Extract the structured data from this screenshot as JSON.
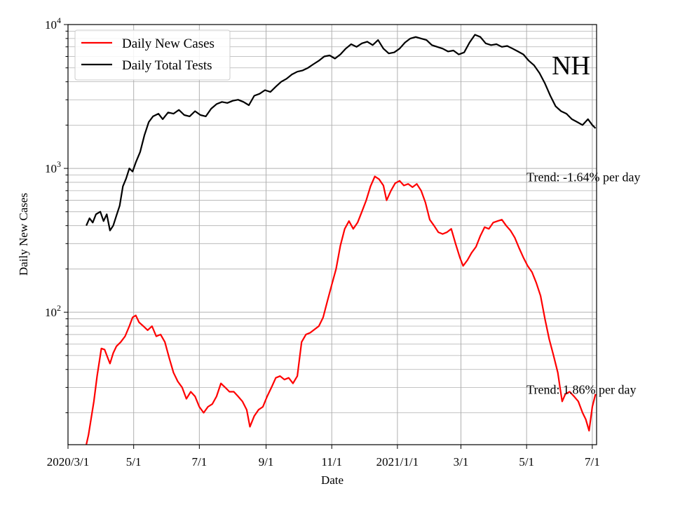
{
  "colors": {
    "cases": "#ff0000",
    "tests": "#000000",
    "grid": "#b0b0b0"
  },
  "chart_data": {
    "type": "line",
    "title": "",
    "xlabel": "Date",
    "ylabel": "Daily New Cases",
    "yscale": "log",
    "ylim": [
      12,
      10000
    ],
    "xlim": [
      "2020-03-01",
      "2021-07-05"
    ],
    "x_ticks": [
      {
        "date": "2020-03-01",
        "label": "2020/3/1"
      },
      {
        "date": "2020-05-01",
        "label": "5/1"
      },
      {
        "date": "2020-07-01",
        "label": "7/1"
      },
      {
        "date": "2020-09-01",
        "label": "9/1"
      },
      {
        "date": "2020-11-01",
        "label": "11/1"
      },
      {
        "date": "2021-01-01",
        "label": "2021/1/1"
      },
      {
        "date": "2021-03-01",
        "label": "3/1"
      },
      {
        "date": "2021-05-01",
        "label": "5/1"
      },
      {
        "date": "2021-07-01",
        "label": "7/1"
      }
    ],
    "y_ticks": [
      {
        "value": 100,
        "base": "10",
        "exp": "2"
      },
      {
        "value": 1000,
        "base": "10",
        "exp": "3"
      },
      {
        "value": 10000,
        "base": "10",
        "exp": "4"
      }
    ],
    "grid": true,
    "legend_position": "top-left",
    "state_label": "NH",
    "annotations": [
      {
        "text": "Trend: -1.64% per day",
        "date": "2021-05-01",
        "value": 870
      },
      {
        "text": "Trend: 1.86% per day",
        "date": "2021-05-01",
        "value": 29
      }
    ],
    "series": [
      {
        "name": "Daily New Cases",
        "color": "#ff0000",
        "points": [
          [
            "2020-03-18",
            12
          ],
          [
            "2020-03-20",
            14
          ],
          [
            "2020-03-25",
            24
          ],
          [
            "2020-03-28",
            36
          ],
          [
            "2020-04-01",
            56
          ],
          [
            "2020-04-04",
            55
          ],
          [
            "2020-04-07",
            48
          ],
          [
            "2020-04-09",
            44
          ],
          [
            "2020-04-12",
            52
          ],
          [
            "2020-04-15",
            58
          ],
          [
            "2020-04-19",
            62
          ],
          [
            "2020-04-23",
            68
          ],
          [
            "2020-04-27",
            80
          ],
          [
            "2020-04-30",
            92
          ],
          [
            "2020-05-03",
            95
          ],
          [
            "2020-05-06",
            85
          ],
          [
            "2020-05-10",
            80
          ],
          [
            "2020-05-14",
            75
          ],
          [
            "2020-05-18",
            80
          ],
          [
            "2020-05-22",
            68
          ],
          [
            "2020-05-26",
            70
          ],
          [
            "2020-05-30",
            62
          ],
          [
            "2020-06-03",
            48
          ],
          [
            "2020-06-07",
            38
          ],
          [
            "2020-06-11",
            33
          ],
          [
            "2020-06-15",
            30
          ],
          [
            "2020-06-19",
            25
          ],
          [
            "2020-06-23",
            28
          ],
          [
            "2020-06-27",
            26
          ],
          [
            "2020-07-01",
            22
          ],
          [
            "2020-07-05",
            20
          ],
          [
            "2020-07-09",
            22
          ],
          [
            "2020-07-13",
            23
          ],
          [
            "2020-07-17",
            26
          ],
          [
            "2020-07-21",
            32
          ],
          [
            "2020-07-25",
            30
          ],
          [
            "2020-07-29",
            28
          ],
          [
            "2020-08-02",
            28
          ],
          [
            "2020-08-06",
            26
          ],
          [
            "2020-08-10",
            24
          ],
          [
            "2020-08-14",
            21
          ],
          [
            "2020-08-17",
            16
          ],
          [
            "2020-08-21",
            19
          ],
          [
            "2020-08-25",
            21
          ],
          [
            "2020-08-29",
            22
          ],
          [
            "2020-09-02",
            26
          ],
          [
            "2020-09-06",
            30
          ],
          [
            "2020-09-10",
            35
          ],
          [
            "2020-09-14",
            36
          ],
          [
            "2020-09-18",
            34
          ],
          [
            "2020-09-22",
            35
          ],
          [
            "2020-09-26",
            32
          ],
          [
            "2020-09-30",
            36
          ],
          [
            "2020-10-04",
            62
          ],
          [
            "2020-10-08",
            70
          ],
          [
            "2020-10-12",
            72
          ],
          [
            "2020-10-16",
            76
          ],
          [
            "2020-10-20",
            80
          ],
          [
            "2020-10-24",
            92
          ],
          [
            "2020-10-28",
            120
          ],
          [
            "2020-11-01",
            155
          ],
          [
            "2020-11-05",
            200
          ],
          [
            "2020-11-09",
            290
          ],
          [
            "2020-11-13",
            380
          ],
          [
            "2020-11-17",
            430
          ],
          [
            "2020-11-21",
            380
          ],
          [
            "2020-11-25",
            420
          ],
          [
            "2020-11-29",
            500
          ],
          [
            "2020-12-03",
            600
          ],
          [
            "2020-12-07",
            750
          ],
          [
            "2020-12-11",
            880
          ],
          [
            "2020-12-15",
            840
          ],
          [
            "2020-12-19",
            760
          ],
          [
            "2020-12-22",
            600
          ],
          [
            "2020-12-26",
            700
          ],
          [
            "2020-12-30",
            790
          ],
          [
            "2021-01-03",
            820
          ],
          [
            "2021-01-07",
            760
          ],
          [
            "2021-01-11",
            780
          ],
          [
            "2021-01-15",
            740
          ],
          [
            "2021-01-19",
            780
          ],
          [
            "2021-01-23",
            700
          ],
          [
            "2021-01-27",
            580
          ],
          [
            "2021-01-31",
            440
          ],
          [
            "2021-02-04",
            400
          ],
          [
            "2021-02-08",
            360
          ],
          [
            "2021-02-12",
            350
          ],
          [
            "2021-02-16",
            360
          ],
          [
            "2021-02-20",
            380
          ],
          [
            "2021-02-24",
            300
          ],
          [
            "2021-02-28",
            240
          ],
          [
            "2021-03-03",
            210
          ],
          [
            "2021-03-07",
            230
          ],
          [
            "2021-03-11",
            260
          ],
          [
            "2021-03-15",
            285
          ],
          [
            "2021-03-19",
            340
          ],
          [
            "2021-03-23",
            390
          ],
          [
            "2021-03-27",
            380
          ],
          [
            "2021-03-31",
            420
          ],
          [
            "2021-04-04",
            430
          ],
          [
            "2021-04-08",
            440
          ],
          [
            "2021-04-12",
            400
          ],
          [
            "2021-04-16",
            370
          ],
          [
            "2021-04-20",
            330
          ],
          [
            "2021-04-24",
            280
          ],
          [
            "2021-04-28",
            240
          ],
          [
            "2021-05-02",
            210
          ],
          [
            "2021-05-06",
            190
          ],
          [
            "2021-05-10",
            160
          ],
          [
            "2021-05-14",
            130
          ],
          [
            "2021-05-18",
            90
          ],
          [
            "2021-05-22",
            65
          ],
          [
            "2021-05-26",
            50
          ],
          [
            "2021-05-30",
            38
          ],
          [
            "2021-06-01",
            30
          ],
          [
            "2021-06-03",
            24
          ],
          [
            "2021-06-06",
            27
          ],
          [
            "2021-06-10",
            28
          ],
          [
            "2021-06-14",
            26
          ],
          [
            "2021-06-18",
            24
          ],
          [
            "2021-06-22",
            20
          ],
          [
            "2021-06-25",
            18
          ],
          [
            "2021-06-28",
            15
          ],
          [
            "2021-07-01",
            22
          ],
          [
            "2021-07-04",
            27
          ]
        ]
      },
      {
        "name": "Daily Total Tests",
        "color": "#000000",
        "points": [
          [
            "2020-03-18",
            400
          ],
          [
            "2020-03-21",
            450
          ],
          [
            "2020-03-24",
            420
          ],
          [
            "2020-03-27",
            480
          ],
          [
            "2020-03-31",
            500
          ],
          [
            "2020-04-03",
            430
          ],
          [
            "2020-04-06",
            480
          ],
          [
            "2020-04-09",
            370
          ],
          [
            "2020-04-12",
            400
          ],
          [
            "2020-04-15",
            470
          ],
          [
            "2020-04-18",
            550
          ],
          [
            "2020-04-21",
            750
          ],
          [
            "2020-04-24",
            850
          ],
          [
            "2020-04-27",
            1000
          ],
          [
            "2020-04-30",
            950
          ],
          [
            "2020-05-03",
            1100
          ],
          [
            "2020-05-07",
            1300
          ],
          [
            "2020-05-11",
            1700
          ],
          [
            "2020-05-15",
            2100
          ],
          [
            "2020-05-19",
            2300
          ],
          [
            "2020-05-24",
            2400
          ],
          [
            "2020-05-28",
            2200
          ],
          [
            "2020-06-02",
            2450
          ],
          [
            "2020-06-07",
            2400
          ],
          [
            "2020-06-12",
            2550
          ],
          [
            "2020-06-17",
            2350
          ],
          [
            "2020-06-22",
            2300
          ],
          [
            "2020-06-27",
            2500
          ],
          [
            "2020-07-02",
            2350
          ],
          [
            "2020-07-07",
            2300
          ],
          [
            "2020-07-12",
            2600
          ],
          [
            "2020-07-17",
            2800
          ],
          [
            "2020-07-22",
            2900
          ],
          [
            "2020-07-27",
            2850
          ],
          [
            "2020-08-01",
            2950
          ],
          [
            "2020-08-06",
            3000
          ],
          [
            "2020-08-11",
            2900
          ],
          [
            "2020-08-16",
            2750
          ],
          [
            "2020-08-21",
            3200
          ],
          [
            "2020-08-26",
            3300
          ],
          [
            "2020-08-31",
            3500
          ],
          [
            "2020-09-05",
            3400
          ],
          [
            "2020-09-10",
            3700
          ],
          [
            "2020-09-15",
            4000
          ],
          [
            "2020-09-20",
            4200
          ],
          [
            "2020-09-25",
            4500
          ],
          [
            "2020-09-30",
            4700
          ],
          [
            "2020-10-05",
            4800
          ],
          [
            "2020-10-10",
            5000
          ],
          [
            "2020-10-15",
            5300
          ],
          [
            "2020-10-20",
            5600
          ],
          [
            "2020-10-25",
            6000
          ],
          [
            "2020-10-30",
            6100
          ],
          [
            "2020-11-04",
            5800
          ],
          [
            "2020-11-09",
            6200
          ],
          [
            "2020-11-14",
            6800
          ],
          [
            "2020-11-19",
            7300
          ],
          [
            "2020-11-24",
            7000
          ],
          [
            "2020-11-29",
            7400
          ],
          [
            "2020-12-04",
            7600
          ],
          [
            "2020-12-09",
            7200
          ],
          [
            "2020-12-14",
            7800
          ],
          [
            "2020-12-19",
            6800
          ],
          [
            "2020-12-24",
            6300
          ],
          [
            "2020-12-29",
            6400
          ],
          [
            "2021-01-03",
            6800
          ],
          [
            "2021-01-08",
            7500
          ],
          [
            "2021-01-13",
            8000
          ],
          [
            "2021-01-18",
            8200
          ],
          [
            "2021-01-23",
            8000
          ],
          [
            "2021-01-28",
            7800
          ],
          [
            "2021-02-02",
            7200
          ],
          [
            "2021-02-07",
            7000
          ],
          [
            "2021-02-12",
            6800
          ],
          [
            "2021-02-17",
            6500
          ],
          [
            "2021-02-22",
            6600
          ],
          [
            "2021-02-27",
            6200
          ],
          [
            "2021-03-04",
            6400
          ],
          [
            "2021-03-09",
            7500
          ],
          [
            "2021-03-14",
            8500
          ],
          [
            "2021-03-19",
            8200
          ],
          [
            "2021-03-24",
            7400
          ],
          [
            "2021-03-29",
            7200
          ],
          [
            "2021-04-03",
            7300
          ],
          [
            "2021-04-08",
            7000
          ],
          [
            "2021-04-13",
            7100
          ],
          [
            "2021-04-18",
            6800
          ],
          [
            "2021-04-23",
            6500
          ],
          [
            "2021-04-28",
            6200
          ],
          [
            "2021-05-03",
            5600
          ],
          [
            "2021-05-08",
            5200
          ],
          [
            "2021-05-13",
            4600
          ],
          [
            "2021-05-18",
            3900
          ],
          [
            "2021-05-23",
            3200
          ],
          [
            "2021-05-28",
            2700
          ],
          [
            "2021-06-02",
            2500
          ],
          [
            "2021-06-07",
            2400
          ],
          [
            "2021-06-12",
            2200
          ],
          [
            "2021-06-17",
            2100
          ],
          [
            "2021-06-22",
            2000
          ],
          [
            "2021-06-27",
            2200
          ],
          [
            "2021-07-01",
            2000
          ],
          [
            "2021-07-04",
            1900
          ]
        ]
      }
    ]
  }
}
